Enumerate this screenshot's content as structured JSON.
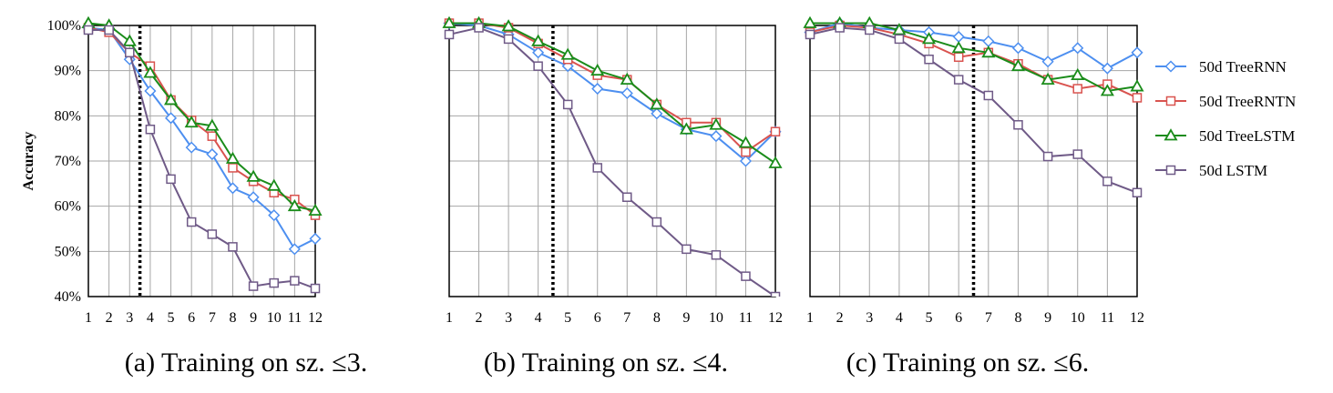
{
  "chart_data": [
    {
      "type": "line",
      "caption": "(a) Training on sz. ≤3.",
      "ylabel": "Accuracy",
      "x": [
        1,
        2,
        3,
        4,
        5,
        6,
        7,
        8,
        9,
        10,
        11,
        12
      ],
      "xlim": [
        1,
        12
      ],
      "ylim": [
        40,
        100
      ],
      "yticks": [
        "40%",
        "50%",
        "60%",
        "70%",
        "80%",
        "90%",
        "100%"
      ],
      "grid": true,
      "threshold_x": 3.5,
      "series": [
        {
          "name": "50d TreeRNN",
          "values": [
            99.5,
            99.0,
            92.5,
            85.5,
            79.5,
            73.0,
            71.5,
            64.0,
            62.0,
            58.0,
            50.5,
            52.8
          ]
        },
        {
          "name": "50d TreeRNTN",
          "values": [
            99.5,
            98.5,
            94.0,
            91.0,
            83.5,
            79.0,
            75.5,
            68.5,
            65.5,
            63.0,
            61.5,
            58.0
          ]
        },
        {
          "name": "50d TreeLSTM",
          "values": [
            100.5,
            100.0,
            96.5,
            89.5,
            83.5,
            78.5,
            77.8,
            70.5,
            66.5,
            64.5,
            60.0,
            59.0
          ]
        },
        {
          "name": "50d LSTM",
          "values": [
            99.0,
            99.0,
            94.0,
            77.0,
            66.0,
            56.5,
            53.8,
            51.0,
            42.3,
            43.0,
            43.5,
            41.8
          ]
        }
      ]
    },
    {
      "type": "line",
      "caption": "(b) Training on sz. ≤4.",
      "ylabel": "",
      "x": [
        1,
        2,
        3,
        4,
        5,
        6,
        7,
        8,
        9,
        10,
        11,
        12
      ],
      "xlim": [
        1,
        12
      ],
      "ylim": [
        40,
        100
      ],
      "yticks": [],
      "grid": true,
      "threshold_x": 4.5,
      "series": [
        {
          "name": "50d TreeRNN",
          "values": [
            100.5,
            100.0,
            98.0,
            94.0,
            91.0,
            86.0,
            85.0,
            80.5,
            77.0,
            75.5,
            70.0,
            76.5
          ]
        },
        {
          "name": "50d TreeRNTN",
          "values": [
            100.5,
            100.5,
            99.5,
            96.0,
            92.5,
            89.0,
            88.0,
            82.5,
            78.5,
            78.5,
            72.0,
            76.5
          ]
        },
        {
          "name": "50d TreeLSTM",
          "values": [
            100.5,
            100.5,
            99.8,
            96.5,
            93.5,
            90.0,
            88.0,
            82.5,
            77.0,
            78.0,
            74.0,
            69.5
          ]
        },
        {
          "name": "50d LSTM",
          "values": [
            98.0,
            99.5,
            97.0,
            91.0,
            82.5,
            68.5,
            62.0,
            56.5,
            50.5,
            49.2,
            44.5,
            40.0
          ]
        }
      ]
    },
    {
      "type": "line",
      "caption": "(c) Training on sz. ≤6.",
      "ylabel": "",
      "x": [
        1,
        2,
        3,
        4,
        5,
        6,
        7,
        8,
        9,
        10,
        11,
        12
      ],
      "xlim": [
        1,
        12
      ],
      "ylim": [
        40,
        100
      ],
      "yticks": [],
      "grid": true,
      "threshold_x": 6.5,
      "series": [
        {
          "name": "50d TreeRNN",
          "values": [
            98.5,
            100.5,
            99.5,
            99.0,
            98.5,
            97.5,
            96.5,
            95.0,
            92.0,
            95.0,
            90.5,
            94.0
          ]
        },
        {
          "name": "50d TreeRNTN",
          "values": [
            98.5,
            100.0,
            99.5,
            98.0,
            96.0,
            93.0,
            94.0,
            91.5,
            88.0,
            86.0,
            87.0,
            84.0
          ]
        },
        {
          "name": "50d TreeLSTM",
          "values": [
            100.5,
            100.5,
            100.5,
            99.0,
            97.0,
            95.0,
            94.0,
            91.0,
            88.0,
            89.0,
            85.5,
            86.5
          ]
        },
        {
          "name": "50d LSTM",
          "values": [
            98.0,
            99.5,
            99.0,
            97.0,
            92.5,
            88.0,
            84.5,
            78.0,
            71.0,
            71.5,
            65.5,
            63.0
          ]
        }
      ]
    }
  ],
  "legend": {
    "placement": "right",
    "entries": [
      {
        "name": "50d TreeRNN",
        "color": "#4d8ff0",
        "marker": "diamond"
      },
      {
        "name": "50d TreeRNTN",
        "color": "#d9534f",
        "marker": "square"
      },
      {
        "name": "50d TreeLSTM",
        "color": "#1a8c1a",
        "marker": "triangle"
      },
      {
        "name": "50d LSTM",
        "color": "#6f5a87",
        "marker": "square"
      }
    ]
  }
}
